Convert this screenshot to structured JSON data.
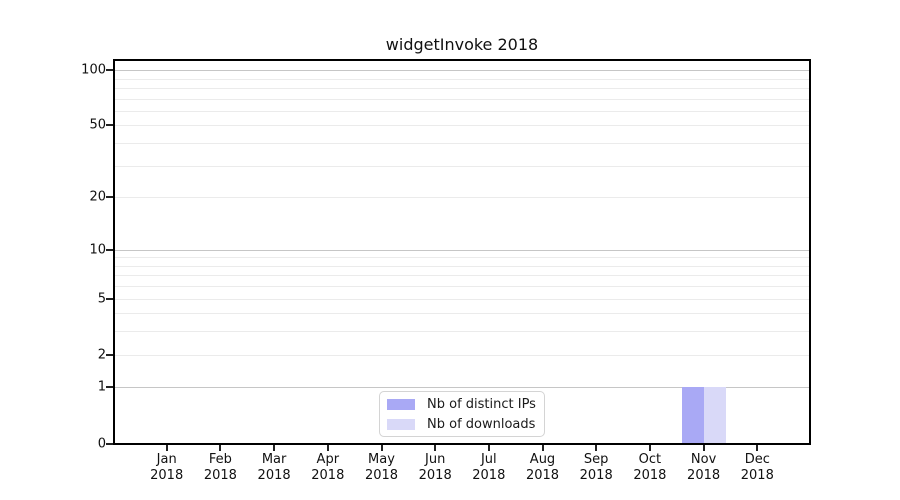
{
  "chart_data": {
    "type": "bar",
    "title": "widgetInvoke 2018",
    "categories": [
      "Jan 2018",
      "Feb 2018",
      "Mar 2018",
      "Apr 2018",
      "May 2018",
      "Jun 2018",
      "Jul 2018",
      "Aug 2018",
      "Sep 2018",
      "Oct 2018",
      "Nov 2018",
      "Dec 2018"
    ],
    "series": [
      {
        "name": "Nb of distinct IPs",
        "color": "#a9a9f5",
        "values": [
          0,
          0,
          0,
          0,
          0,
          0,
          0,
          0,
          0,
          0,
          1,
          0
        ]
      },
      {
        "name": "Nb of downloads",
        "color": "#d9d9f8",
        "values": [
          0,
          0,
          0,
          0,
          0,
          0,
          0,
          0,
          0,
          0,
          1,
          0
        ]
      }
    ],
    "yscale": "symlog",
    "ylim": [
      0,
      115
    ],
    "yticks": [
      0,
      1,
      2,
      5,
      10,
      20,
      50,
      100
    ],
    "minor_gridlines": [
      2,
      3,
      4,
      5,
      6,
      7,
      8,
      9,
      20,
      30,
      40,
      50,
      60,
      70,
      80,
      90
    ],
    "major_gridlines": [
      1,
      10,
      100
    ],
    "grid": "horizontal",
    "legend_position": "inside-bottom-center"
  },
  "colors": {
    "grid_major": "#c6c6c6",
    "grid_minor": "#ebebeb",
    "axis_line": "#000000",
    "tick_text": "#111111"
  }
}
